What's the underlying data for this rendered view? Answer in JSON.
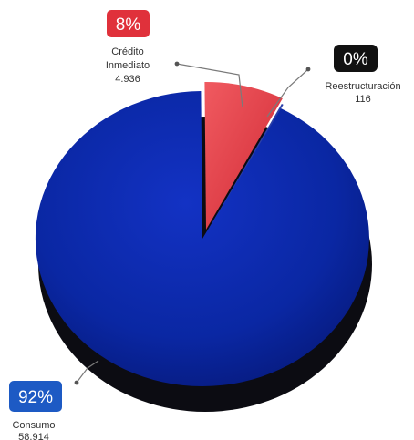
{
  "chart_data": {
    "type": "pie",
    "slices": [
      {
        "label": "Crédito Inmediato",
        "label_lines": [
          "Crédito",
          "Inmediato"
        ],
        "value": 4936,
        "value_label": "4.936",
        "percent_label": "8%",
        "color": "#e0424a",
        "badge_color": "#e0313b"
      },
      {
        "label": "Reestructuración",
        "label_lines": [
          "Reestructuración"
        ],
        "value": 116,
        "value_label": "116",
        "percent_label": "0%",
        "color": "#1b2f8e",
        "badge_color": "#111111"
      },
      {
        "label": "Consumo",
        "label_lines": [
          "Consumo"
        ],
        "value": 58914,
        "value_label": "58.914",
        "percent_label": "92%",
        "color": "#0a2aa6",
        "badge_color": "#1d5ac4"
      }
    ]
  }
}
